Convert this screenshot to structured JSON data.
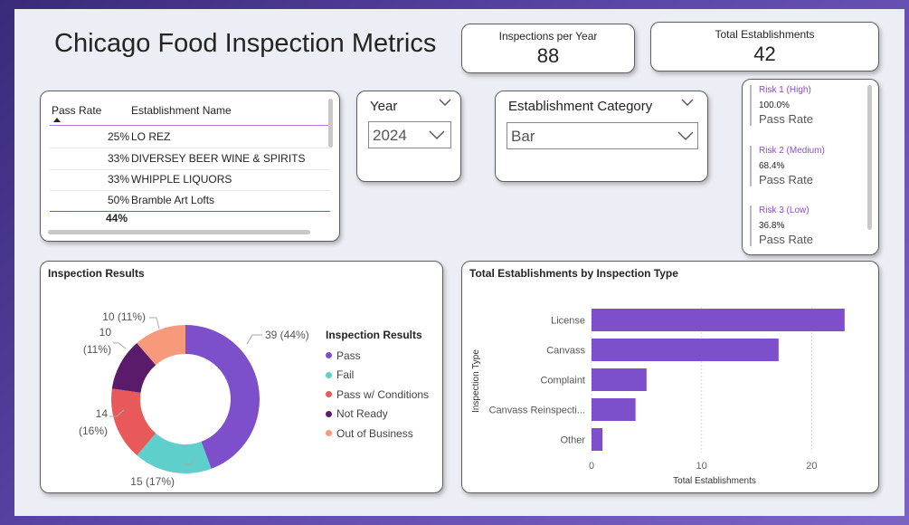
{
  "title": "Chicago Food Inspection Metrics",
  "kpis": {
    "inspections_per_year": {
      "label": "Inspections per Year",
      "value": "88"
    },
    "total_establishments": {
      "label": "Total Establishments",
      "value": "42"
    }
  },
  "table": {
    "col_pass_rate": "Pass Rate",
    "col_name": "Establishment Name",
    "rows": [
      {
        "pass_rate": "25%",
        "name": "LO REZ"
      },
      {
        "pass_rate": "33%",
        "name": "DIVERSEY BEER WINE & SPIRITS"
      },
      {
        "pass_rate": "33%",
        "name": "WHIPPLE LIQUORS"
      },
      {
        "pass_rate": "50%",
        "name": "Bramble Art Lofts"
      }
    ],
    "total": "44%"
  },
  "year_slicer": {
    "title": "Year",
    "value": "2024"
  },
  "category_slicer": {
    "title": "Establishment Category",
    "value": "Bar"
  },
  "risk": [
    {
      "label": "Risk 1 (High)",
      "value": "100.0%",
      "sub": "Pass Rate"
    },
    {
      "label": "Risk 2 (Medium)",
      "value": "68.4%",
      "sub": "Pass Rate"
    },
    {
      "label": "Risk 3 (Low)",
      "value": "36.8%",
      "sub": "Pass Rate"
    }
  ],
  "donut": {
    "title": "Inspection Results",
    "legend_title": "Inspection Results",
    "labels": [
      "39 (44%)",
      "15 (17%)",
      "14",
      "(16%)",
      "10",
      "(11%)",
      "10 (11%)"
    ],
    "colors": {
      "pass": "#7e4fcb",
      "fail": "#5ecfcb",
      "pass_conditions": "#e85a5a",
      "not_ready": "#5a1c6a",
      "out_of_business": "#f79a7c"
    }
  },
  "bar_chart": {
    "title": "Total Establishments by Inspection Type",
    "bar_color": "#7e4fcb"
  },
  "chart_data": [
    {
      "type": "pie",
      "title": "Inspection Results",
      "categories": [
        "Pass",
        "Fail",
        "Pass w/ Conditions",
        "Not Ready",
        "Out of Business"
      ],
      "values": [
        39,
        15,
        14,
        10,
        10
      ],
      "percent": [
        44,
        17,
        16,
        11,
        11
      ],
      "legend": "right"
    },
    {
      "type": "bar",
      "orientation": "horizontal",
      "title": "Total Establishments by Inspection Type",
      "categories": [
        "License",
        "Canvass",
        "Complaint",
        "Canvass Reinspecti...",
        "Other"
      ],
      "values": [
        23,
        17,
        5,
        4,
        1
      ],
      "xlabel": "Total Establishments",
      "ylabel": "Inspection Type",
      "xlim": [
        0,
        24
      ],
      "xticks": [
        "0",
        "10",
        "20"
      ],
      "grid": true
    }
  ]
}
